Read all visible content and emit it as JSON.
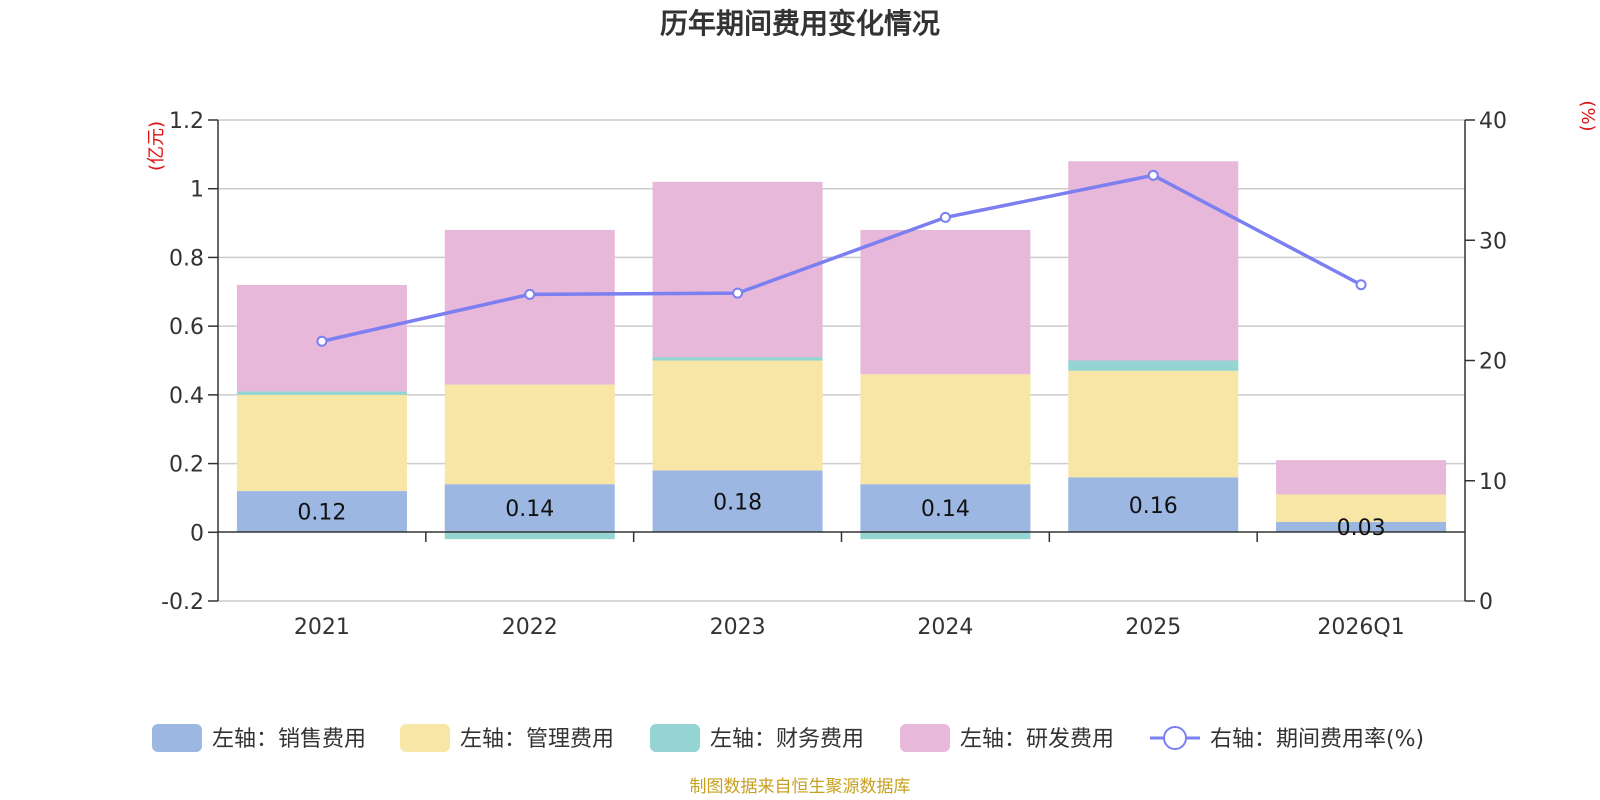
{
  "chart_data": {
    "type": "bar",
    "stacked": true,
    "title": "历年期间费用变化情况",
    "categories": [
      "2021",
      "2022",
      "2023",
      "2024",
      "2025",
      "2026Q1"
    ],
    "left_axis": {
      "unit": "(亿元)",
      "ylim": [
        -0.2,
        1.2
      ],
      "ticks": [
        "1.2",
        "1",
        "0.8",
        "0.6",
        "0.4",
        "0.2",
        "0",
        "-0.2"
      ],
      "tick_values": [
        1.2,
        1.0,
        0.8,
        0.6,
        0.4,
        0.2,
        0,
        -0.2
      ]
    },
    "right_axis": {
      "unit": "(%)",
      "ylim": [
        0,
        40
      ],
      "ticks": [
        "40",
        "30",
        "20",
        "10",
        "0"
      ],
      "tick_values": [
        40,
        30,
        20,
        10,
        0
      ]
    },
    "series": [
      {
        "name": "左轴：销售费用",
        "axis": "left",
        "color": "#9bb7e2",
        "values": [
          0.12,
          0.14,
          0.18,
          0.14,
          0.16,
          0.03
        ],
        "labels": [
          "0.12",
          "0.14",
          "0.18",
          "0.14",
          "0.16",
          "0.03"
        ]
      },
      {
        "name": "左轴：管理费用",
        "axis": "left",
        "color": "#f8e6a6",
        "values": [
          0.28,
          0.29,
          0.32,
          0.32,
          0.31,
          0.08
        ]
      },
      {
        "name": "左轴：财务费用",
        "axis": "left",
        "color": "#94d4d2",
        "values": [
          0.01,
          -0.02,
          0.01,
          -0.02,
          0.03,
          0.0
        ]
      },
      {
        "name": "左轴：研发费用",
        "axis": "left",
        "color": "#e7b8d9",
        "values": [
          0.31,
          0.45,
          0.51,
          0.42,
          0.58,
          0.1
        ]
      },
      {
        "name": "右轴：期间费用率(%)",
        "axis": "right",
        "type": "line",
        "color": "#7b7ff0",
        "values": [
          21.6,
          25.5,
          25.6,
          31.9,
          35.4,
          26.3
        ]
      }
    ],
    "source": "制图数据来自恒生聚源数据库"
  }
}
